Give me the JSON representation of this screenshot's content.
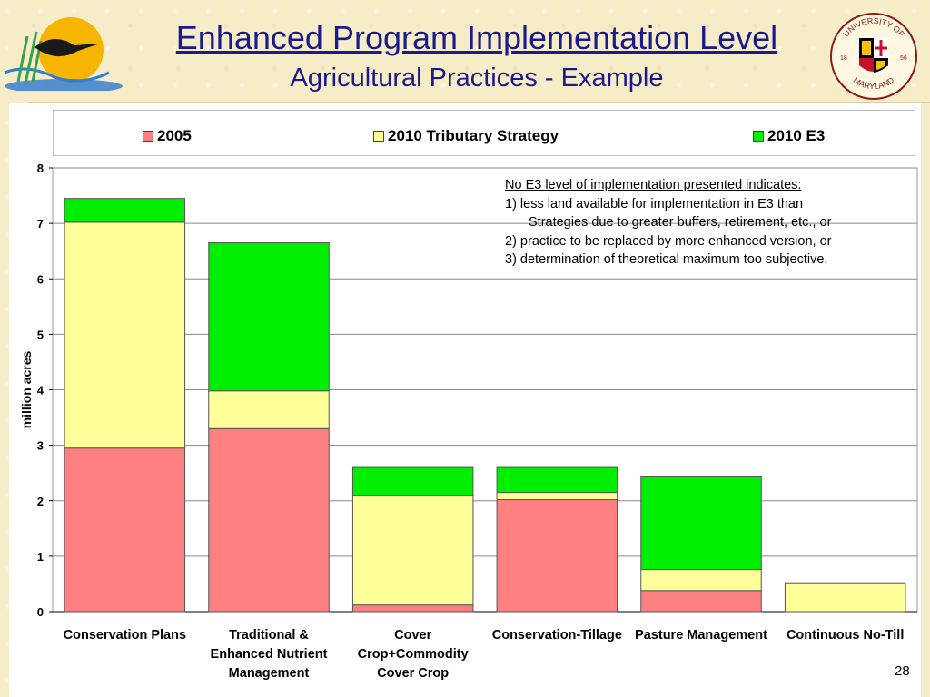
{
  "slide": {
    "title": "Enhanced Program Implementation Level",
    "subtitle": "Agricultural Practices - Example",
    "page_number": "28",
    "right_logo_text": "UNIVERSITY OF MARYLAND 18 56"
  },
  "annotation": {
    "heading": "No E3 level of implementation presented indicates:",
    "line1": "1)  less land available for implementation in E3 than",
    "line1b": "Strategies due to greater buffers, retirement, etc., or",
    "line2": "2)  practice to be replaced by more enhanced version, or",
    "line3": "3)  determination of theoretical maximum too subjective."
  },
  "colors": {
    "series_2005": "#ff8080",
    "series_tributary": "#ffff99",
    "series_e3": "#00ee00",
    "title": "#1a1a8c"
  },
  "chart_data": {
    "type": "bar",
    "stacked": true,
    "categories": [
      [
        "Conservation Plans"
      ],
      [
        "Traditional &",
        "Enhanced Nutrient",
        "Management"
      ],
      [
        "Cover",
        "Crop+Commodity",
        "Cover Crop"
      ],
      [
        "Conservation-Tillage"
      ],
      [
        "Pasture Management"
      ],
      [
        "Continuous No-Till"
      ]
    ],
    "series": [
      {
        "name": "2005",
        "color": "#ff8080",
        "values": [
          2.95,
          3.3,
          0.12,
          2.02,
          0.38,
          0.0
        ]
      },
      {
        "name": "2010 Tributary Strategy",
        "color": "#ffff99",
        "values": [
          4.07,
          0.68,
          1.98,
          0.13,
          0.38,
          0.52
        ]
      },
      {
        "name": "2010 E3",
        "color": "#00ee00",
        "values": [
          0.43,
          2.67,
          0.5,
          0.45,
          1.67,
          0.0
        ]
      }
    ],
    "ylabel": "million acres",
    "xlabel": "",
    "ylim": [
      0,
      8
    ],
    "yticks": [
      0,
      1,
      2,
      3,
      4,
      5,
      6,
      7,
      8
    ],
    "grid": true,
    "legend_position": "top"
  }
}
